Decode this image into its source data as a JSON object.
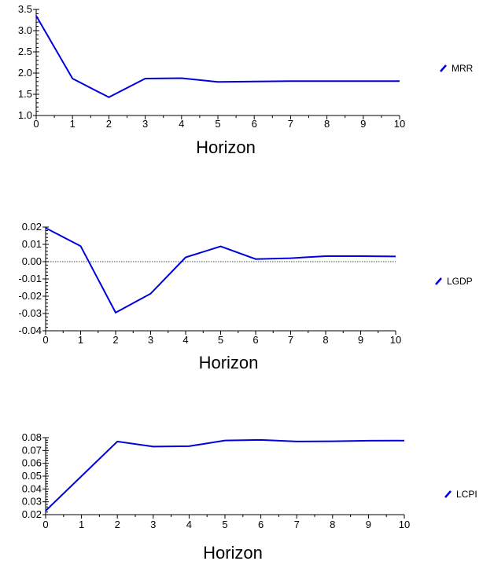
{
  "chart_data": [
    {
      "type": "line",
      "xlabel": "Horizon",
      "x": [
        0,
        1,
        2,
        3,
        4,
        5,
        6,
        7,
        8,
        9,
        10
      ],
      "xlim": [
        0,
        10
      ],
      "ylim": [
        1.0,
        3.5
      ],
      "yticks": [
        "1.0",
        "1.5",
        "2.0",
        "2.5",
        "3.0",
        "3.5"
      ],
      "series": [
        {
          "name": "MRR",
          "color": "#0000dd",
          "values": [
            3.35,
            1.87,
            1.43,
            1.87,
            1.88,
            1.79,
            1.8,
            1.81,
            1.81,
            1.81,
            1.81
          ]
        }
      ],
      "legend_position": "right",
      "zero_line": false
    },
    {
      "type": "line",
      "xlabel": "Horizon",
      "x": [
        0,
        1,
        2,
        3,
        4,
        5,
        6,
        7,
        8,
        9,
        10
      ],
      "xlim": [
        0,
        10
      ],
      "ylim": [
        -0.04,
        0.02
      ],
      "yticks": [
        "-0.04",
        "-0.03",
        "-0.02",
        "-0.01",
        "0.00",
        "0.01",
        "0.02"
      ],
      "series": [
        {
          "name": "LGDP",
          "color": "#0000dd",
          "values": [
            0.0195,
            0.009,
            -0.0295,
            -0.0185,
            0.0025,
            0.0088,
            0.0015,
            0.002,
            0.0032,
            0.0032,
            0.003
          ]
        }
      ],
      "legend_position": "right",
      "zero_line": true
    },
    {
      "type": "line",
      "xlabel": "Horizon",
      "x": [
        0,
        1,
        2,
        3,
        4,
        5,
        6,
        7,
        8,
        9,
        10
      ],
      "xlim": [
        0,
        10
      ],
      "ylim": [
        0.02,
        0.08
      ],
      "yticks": [
        "0.02",
        "0.03",
        "0.04",
        "0.05",
        "0.06",
        "0.07",
        "0.08"
      ],
      "series": [
        {
          "name": "LCPI",
          "color": "#0000dd",
          "values": [
            0.023,
            0.05,
            0.077,
            0.073,
            0.0733,
            0.0778,
            0.0782,
            0.077,
            0.0772,
            0.0776,
            0.0777
          ]
        }
      ],
      "legend_position": "right",
      "zero_line": false
    }
  ]
}
